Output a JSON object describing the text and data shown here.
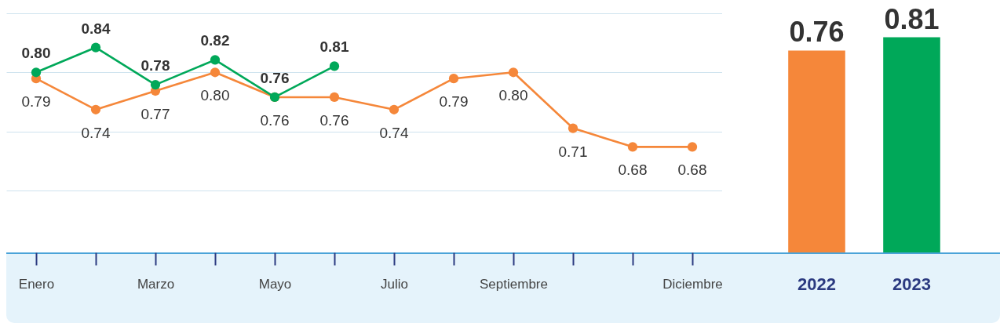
{
  "chart_data": [
    {
      "type": "line",
      "categories": [
        "Enero",
        null,
        "Marzo",
        null,
        "Mayo",
        null,
        "Julio",
        null,
        "Septiembre",
        null,
        null,
        "Diciembre"
      ],
      "series": [
        {
          "color": "#f5873a",
          "values": [
            0.79,
            0.74,
            0.77,
            0.8,
            0.76,
            0.76,
            0.74,
            0.79,
            0.8,
            0.71,
            0.68,
            0.68
          ],
          "value_labels": [
            "0.79",
            "0.74",
            "0.77",
            "0.80",
            "0.76",
            "0.76",
            "0.74",
            "0.79",
            "0.80",
            "0.71",
            "0.68",
            "0.68"
          ]
        },
        {
          "color": "#00a859",
          "values": [
            0.8,
            0.84,
            0.78,
            0.82,
            0.76,
            0.81,
            null,
            null,
            null,
            null,
            null,
            null
          ],
          "value_labels": [
            "0.80",
            "0.84",
            "0.78",
            "0.82",
            "0.76",
            "0.81",
            null,
            null,
            null,
            null,
            null,
            null
          ]
        }
      ],
      "ylim": [
        0.51,
        0.895
      ],
      "yticks": [
        {
          "value": 0.61,
          "label": null
        },
        {
          "value": 0.705,
          "label": null
        },
        {
          "value": 0.8,
          "label": null
        },
        {
          "value": 0.895,
          "label": null
        }
      ],
      "grid": "y",
      "marker": "circle",
      "tick_labels": "x"
    },
    {
      "type": "bar",
      "categories": [
        "2022",
        "2023"
      ],
      "values": [
        0.76,
        0.81
      ],
      "colors": [
        "#f5873a",
        "#00a859"
      ],
      "value_labels": [
        "0.76",
        "0.81"
      ],
      "tick_labels": "x"
    }
  ]
}
